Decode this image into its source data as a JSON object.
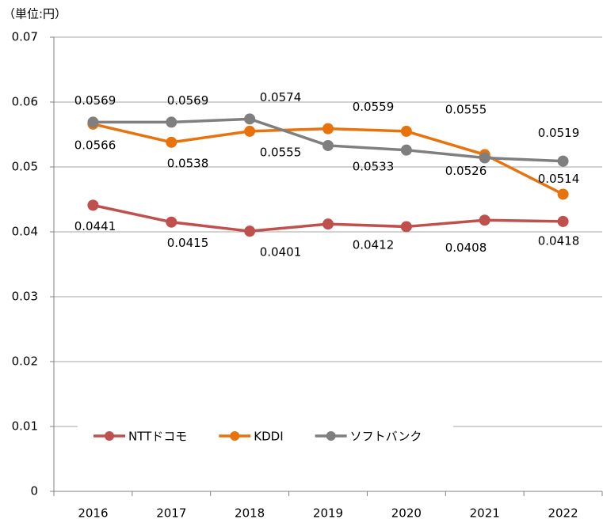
{
  "chart_data": {
    "type": "line",
    "unit_label": "（単位:円）",
    "categories": [
      "2016",
      "2017",
      "2018",
      "2019",
      "2020",
      "2021",
      "2022"
    ],
    "series": [
      {
        "name": "NTTドコモ",
        "color": "#c0504d",
        "values": [
          0.0441,
          0.0415,
          0.0401,
          0.0412,
          0.0408,
          0.0418,
          0.0416
        ],
        "value_labels": [
          "0.0441",
          "0.0415",
          "0.0401",
          "0.0412",
          "0.0408",
          "0.0418",
          null
        ]
      },
      {
        "name": "KDDI",
        "color": "#e8730c",
        "values": [
          0.0566,
          0.0538,
          0.0555,
          0.0559,
          0.0555,
          0.0519,
          0.0458
        ],
        "value_labels": [
          "0.0566",
          "0.0538",
          "0.0555",
          "0.0559",
          "0.0555",
          "0.0519",
          null
        ]
      },
      {
        "name": "ソフトバンク",
        "color": "#7f7f7f",
        "values": [
          0.0569,
          0.0569,
          0.0574,
          0.0533,
          0.0526,
          0.0514,
          0.0509
        ],
        "value_labels": [
          "0.0569",
          "0.0569",
          "0.0574",
          "0.0533",
          "0.0526",
          "0.0514",
          null
        ]
      }
    ],
    "ylim": [
      0,
      0.07
    ],
    "yticks": [
      0,
      0.01,
      0.02,
      0.03,
      0.04,
      0.05,
      0.06,
      0.07
    ],
    "grid": true
  }
}
